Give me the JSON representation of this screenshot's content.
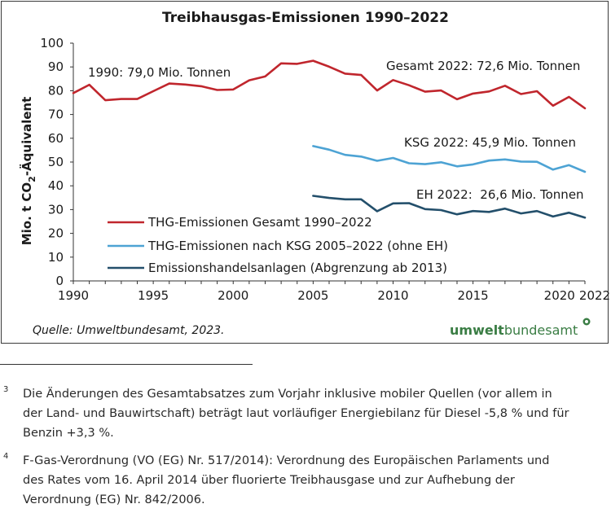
{
  "chart_data": {
    "type": "line",
    "title": "Treibhausgas-Emissionen 1990–2022",
    "ylabel_main": "Mio. t CO",
    "ylabel_sub": "2",
    "ylabel_rest": "-Äquivalent",
    "xlabel": "",
    "ylim": [
      0,
      100
    ],
    "yticks": [
      "0",
      "10",
      "20",
      "30",
      "40",
      "50",
      "60",
      "70",
      "80",
      "90",
      "100"
    ],
    "ytick_values": [
      0,
      10,
      20,
      30,
      40,
      50,
      60,
      70,
      80,
      90,
      100
    ],
    "xlim": [
      1990,
      2022
    ],
    "xticks": [
      "1990",
      "1995",
      "2000",
      "2005",
      "2010",
      "2015",
      "2020",
      "2022"
    ],
    "xtick_values": [
      1990,
      1995,
      2000,
      2005,
      2010,
      2015,
      2020,
      2022
    ],
    "series": [
      {
        "name": "THG-Emissionen Gesamt 1990–2022",
        "color": "#c0262d",
        "x": [
          1990,
          1991,
          1992,
          1993,
          1994,
          1995,
          1996,
          1997,
          1998,
          1999,
          2000,
          2001,
          2002,
          2003,
          2004,
          2005,
          2006,
          2007,
          2008,
          2009,
          2010,
          2011,
          2012,
          2013,
          2014,
          2015,
          2016,
          2017,
          2018,
          2019,
          2020,
          2021,
          2022
        ],
        "values": [
          79.0,
          82.5,
          76.0,
          76.5,
          76.5,
          79.8,
          83.0,
          82.6,
          81.9,
          80.3,
          80.5,
          84.4,
          86.0,
          91.5,
          91.3,
          92.6,
          90.1,
          87.2,
          86.6,
          80.1,
          84.5,
          82.3,
          79.6,
          80.1,
          76.4,
          78.8,
          79.7,
          82.1,
          78.6,
          79.8,
          73.7,
          77.4,
          72.6
        ]
      },
      {
        "name": "THG-Emissionen nach KSG 2005–2022 (ohne EH)",
        "color": "#4da3d4",
        "x": [
          2005,
          2006,
          2007,
          2008,
          2009,
          2010,
          2011,
          2012,
          2013,
          2014,
          2015,
          2016,
          2017,
          2018,
          2019,
          2020,
          2021,
          2022
        ],
        "values": [
          56.7,
          55.2,
          53.0,
          52.3,
          50.5,
          51.7,
          49.5,
          49.1,
          49.9,
          48.2,
          49.0,
          50.6,
          51.1,
          50.2,
          50.1,
          46.8,
          48.7,
          45.9
        ]
      },
      {
        "name": "Emissionshandelsanlagen (Abgrenzung ab 2013)",
        "color": "#234f6b",
        "x": [
          2005,
          2006,
          2007,
          2008,
          2009,
          2010,
          2011,
          2012,
          2013,
          2014,
          2015,
          2016,
          2017,
          2018,
          2019,
          2020,
          2021,
          2022
        ],
        "values": [
          35.8,
          34.9,
          34.3,
          34.3,
          29.3,
          32.6,
          32.7,
          30.2,
          29.8,
          28.0,
          29.4,
          29.0,
          30.4,
          28.4,
          29.4,
          27.1,
          28.7,
          26.6
        ]
      }
    ],
    "annotations": [
      "1990: 79,0 Mio. Tonnen",
      "Gesamt 2022: 72,6 Mio. Tonnen",
      "KSG 2022: 45,9 Mio. Tonnen",
      "EH 2022:  26,6 Mio. Tonnen"
    ],
    "legend_position": "bottom-left",
    "grid": false
  },
  "source": "Quelle: Umweltbundesamt, 2023.",
  "logo": {
    "bold": "umwelt",
    "regular": "bundesamt"
  },
  "footnotes": [
    {
      "num": "3",
      "lines": [
        "Die Änderungen des Gesamtabsatzes zum Vorjahr inklusive mobiler Quellen (vor allem in",
        "der Land- und Bauwirtschaft) beträgt laut vorläufiger Energiebilanz für Diesel -5,8 % und für",
        "Benzin +3,3 %."
      ]
    },
    {
      "num": "4",
      "lines": [
        "F-Gas-Verordnung (VO (EG) Nr. 517/2014): Verordnung des Europäischen Parlaments und",
        "des Rates vom 16. April 2014 über fluorierte Treibhausgase und zur Aufhebung der",
        "Verordnung (EG) Nr. 842/2006."
      ]
    }
  ]
}
